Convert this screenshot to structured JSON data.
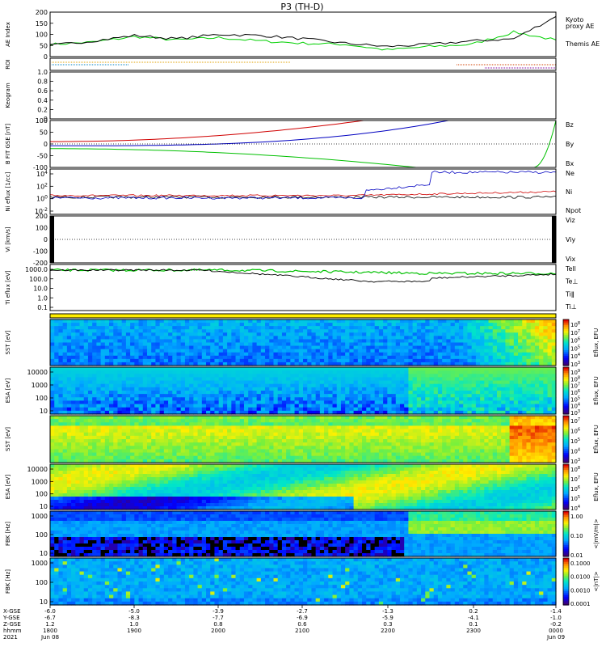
{
  "title": "P3 (TH-D)",
  "colors": {
    "red": "#d00000",
    "green": "#00c000",
    "blue": "#0000c0",
    "black": "#000000",
    "ae_green": "#00d000"
  },
  "chart_data": [
    {
      "type": "line",
      "ylabel": "AE Index",
      "ylim": [
        0,
        200
      ],
      "yticks": [
        "0",
        "50",
        "100",
        "150",
        "200"
      ],
      "legend": [
        {
          "label": "Kyoto",
          "color_key": "ae_green"
        },
        {
          "label": "proxy AE",
          "color_key": "ae_green"
        },
        {
          "label": "Themis AE",
          "color_key": "black"
        }
      ],
      "x": [
        "1800",
        "1830",
        "1900",
        "1930",
        "2000",
        "2030",
        "2100",
        "2130",
        "2200",
        "2230",
        "2300",
        "2330",
        "0000"
      ],
      "series": [
        {
          "name": "Kyoto proxy AE",
          "color_key": "ae_green",
          "values": [
            55,
            65,
            90,
            75,
            85,
            70,
            60,
            55,
            30,
            45,
            55,
            110,
            75
          ]
        },
        {
          "name": "Themis AE",
          "color_key": "black",
          "values": [
            50,
            70,
            95,
            80,
            100,
            95,
            80,
            60,
            45,
            55,
            70,
            80,
            180
          ]
        }
      ]
    },
    {
      "type": "line",
      "ylabel": "ROI",
      "yticks": []
    },
    {
      "type": "line",
      "ylabel": "Keogram",
      "ylim": [
        0,
        1
      ],
      "yticks": [
        "0",
        "0.2",
        "0.4",
        "0.6",
        "0.8",
        "1.0"
      ]
    },
    {
      "type": "line",
      "ylabel": "B FIT GSE [nT]",
      "ylim": [
        -100,
        100
      ],
      "yticks": [
        "-100",
        "-50",
        "0",
        "50",
        "100"
      ],
      "legend": [
        {
          "label": "Bz",
          "color_key": "red"
        },
        {
          "label": "By",
          "color_key": "green"
        },
        {
          "label": "Bx",
          "color_key": "blue"
        }
      ]
    },
    {
      "type": "line",
      "ylabel": "Ni eflux [1/cc]",
      "yticks": [
        "10^4",
        "10^2",
        "10^0",
        "10^-2"
      ],
      "legend": [
        {
          "label": "Ne",
          "color_key": "red"
        },
        {
          "label": "Ni",
          "color_key": "black"
        },
        {
          "label": "Npot",
          "color_key": "blue"
        }
      ]
    },
    {
      "type": "line",
      "ylabel": "Vi [km/s]",
      "ylim": [
        -300,
        300
      ],
      "yticks": [
        "-200",
        "-100",
        "0",
        "100",
        "200"
      ],
      "legend": [
        {
          "label": "Viz",
          "color_key": "red"
        },
        {
          "label": "Viy",
          "color_key": "green"
        },
        {
          "label": "Vix",
          "color_key": "blue"
        }
      ]
    },
    {
      "type": "line",
      "ylabel": "Ti eflux [eV]",
      "yticks": [
        "1000.0",
        "100.0",
        "10.0",
        "1.0",
        "0.1"
      ],
      "legend": [
        {
          "label": "Tell",
          "color_key": "black"
        },
        {
          "label": "Te⊥",
          "color_key": "red"
        },
        {
          "label": "Tiǁ",
          "color_key": "green"
        },
        {
          "label": "Ti⊥",
          "color_key": "blue"
        }
      ]
    },
    {
      "type": "heatmap",
      "ylabel": "SST [eV]",
      "cbar_label": "Eflux, EFU",
      "cbar_ticks": [
        "10^8",
        "10^7",
        "10^6",
        "10^5",
        "10^4",
        "10^3"
      ]
    },
    {
      "type": "heatmap",
      "ylabel": "ESA [eV]",
      "yticks": [
        "10000",
        "1000",
        "100",
        "10"
      ],
      "cbar_label": "Eflux, EFU",
      "cbar_ticks": [
        "10^9",
        "10^8",
        "10^7",
        "10^6",
        "10^5",
        "10^4",
        "10^3"
      ]
    },
    {
      "type": "heatmap",
      "ylabel": "SST [eV]",
      "cbar_label": "Eflux, EFU",
      "cbar_ticks": [
        "10^7",
        "10^6",
        "10^5",
        "10^4",
        "10^3"
      ]
    },
    {
      "type": "heatmap",
      "ylabel": "ESA [eV]",
      "yticks": [
        "10000",
        "1000",
        "100",
        "10"
      ],
      "cbar_label": "Eflux, EFU",
      "cbar_ticks": [
        "10^8",
        "10^7",
        "10^6",
        "10^5",
        "10^4"
      ]
    },
    {
      "type": "heatmap",
      "ylabel": "FBK [Hz]",
      "yticks": [
        "1000",
        "100",
        "10"
      ],
      "cbar_label": "<|mV/m|>",
      "cbar_ticks": [
        "1.00",
        "0.10",
        "0.01"
      ]
    },
    {
      "type": "heatmap",
      "ylabel": "FBK [Hz]",
      "yticks": [
        "1000",
        "100",
        "10"
      ],
      "cbar_label": "<|nT|>",
      "cbar_ticks": [
        "0.1000",
        "0.0100",
        "0.0010",
        "0.0001"
      ]
    }
  ],
  "x_axis": {
    "row_labels": [
      "X-GSE",
      "Y-GSE",
      "Z-GSE",
      "hhmm",
      "2021"
    ],
    "columns": [
      [
        "-6.0",
        "-6.7",
        "1.2",
        "1800",
        "Jun 08"
      ],
      [
        "-5.0",
        "-8.3",
        "1.0",
        "1900",
        ""
      ],
      [
        "-3.9",
        "-7.7",
        "0.8",
        "2000",
        ""
      ],
      [
        "-2.7",
        "-6.9",
        "0.6",
        "2100",
        ""
      ],
      [
        "-1.3",
        "-5.9",
        "0.3",
        "2200",
        ""
      ],
      [
        "0.2",
        "-4.1",
        "0.1",
        "2300",
        ""
      ],
      [
        "-1.4",
        "-1.0",
        "-0.2",
        "0000",
        "Jun 09"
      ]
    ]
  }
}
